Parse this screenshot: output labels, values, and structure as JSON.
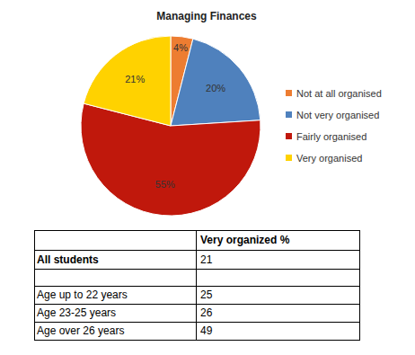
{
  "chart_data": {
    "type": "pie",
    "title": "Managing Finances",
    "categories": [
      "Not at all organised",
      "Not very organised",
      "Fairly organised",
      "Very organised"
    ],
    "values": [
      4,
      20,
      55,
      21
    ],
    "value_labels": [
      "4%",
      "20%",
      "55%",
      "21%"
    ],
    "colors": [
      "#ed7d31",
      "#4f81bd",
      "#c0180c",
      "#ffd200"
    ],
    "data_labels": true,
    "legend": "right"
  },
  "table": {
    "header": [
      null,
      "Very organized %"
    ],
    "rows": [
      [
        "All students",
        21
      ],
      [
        null,
        null
      ],
      [
        "Age up to 22 years",
        25
      ],
      [
        "Age 23-25 years",
        26
      ],
      [
        "Age over 26 years",
        49
      ]
    ]
  }
}
